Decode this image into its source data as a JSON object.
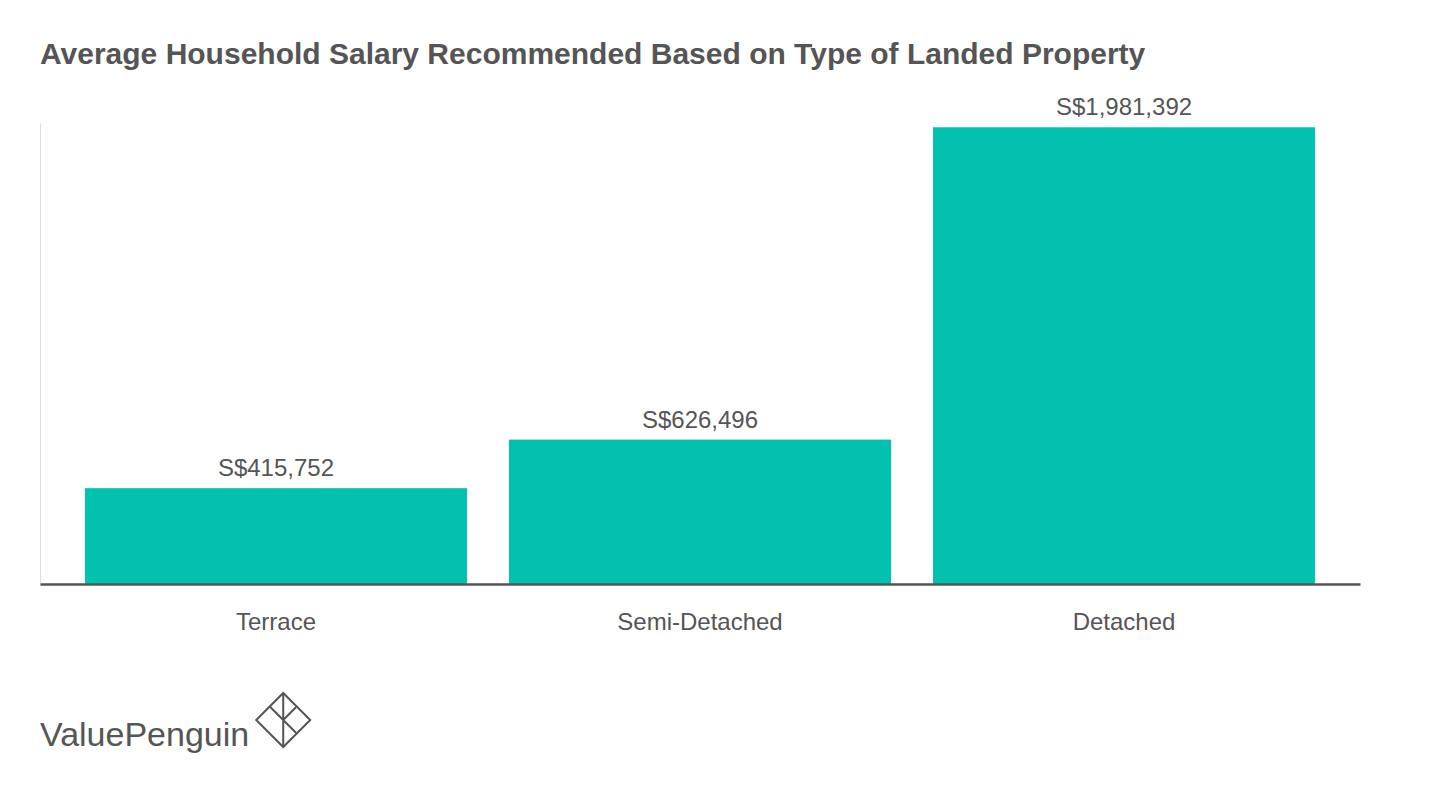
{
  "chart_data": {
    "type": "bar",
    "title": "Average Household Salary Recommended Based on Type of Landed Property",
    "categories": [
      "Terrace",
      "Semi-Detached",
      "Detached"
    ],
    "values": [
      415752,
      626496,
      1981392
    ],
    "value_labels": [
      "S$415,752",
      "S$626,496",
      "S$1,981,392"
    ],
    "color": "#00c2ae",
    "ylim": [
      0,
      2000000
    ],
    "grid": false,
    "data_labels": true,
    "tick_labels": "x",
    "watermark": "ValuePenguin"
  }
}
